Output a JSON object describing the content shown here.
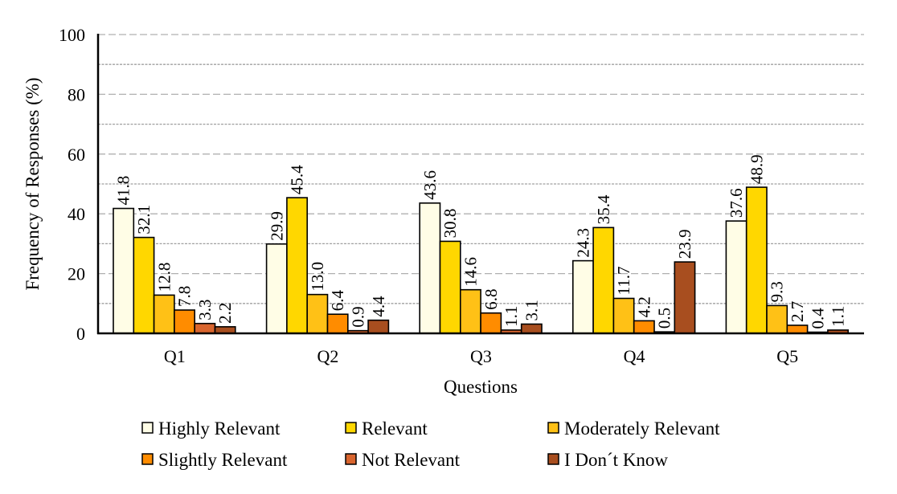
{
  "chart_data": {
    "type": "bar",
    "title": "",
    "xlabel": "Questions",
    "ylabel": "Frequency of Responses (%)",
    "ylim": [
      0,
      100
    ],
    "yticks": [
      0,
      20,
      40,
      60,
      80,
      100
    ],
    "grid": true,
    "legend_position": "bottom",
    "categories": [
      "Q1",
      "Q2",
      "Q3",
      "Q4",
      "Q5"
    ],
    "series": [
      {
        "name": "Highly Relevant",
        "color": "#FFFDE6",
        "values": [
          41.8,
          29.9,
          43.6,
          24.3,
          37.6
        ]
      },
      {
        "name": "Relevant",
        "color": "#FFD700",
        "values": [
          32.1,
          45.4,
          30.8,
          35.4,
          48.9
        ]
      },
      {
        "name": "Moderately Relevant",
        "color": "#FFC116",
        "values": [
          12.8,
          13.0,
          14.6,
          11.7,
          9.3
        ]
      },
      {
        "name": "Slightly Relevant",
        "color": "#FF8C00",
        "values": [
          7.8,
          6.4,
          6.8,
          4.2,
          2.7
        ]
      },
      {
        "name": "Not Relevant",
        "color": "#D9652E",
        "values": [
          3.3,
          0.9,
          1.1,
          0.5,
          0.4
        ]
      },
      {
        "name": "I Don´t Know",
        "color": "#A84E1F",
        "values": [
          2.2,
          4.4,
          3.1,
          23.9,
          1.1
        ]
      }
    ],
    "data_labels": [
      [
        "41.8",
        "29.9",
        "43.6",
        "24.3",
        "37.6"
      ],
      [
        "32.1",
        "45.4",
        "30.8",
        "35.4",
        "48.9"
      ],
      [
        "12.8",
        "13.0",
        "14.6",
        "11.7",
        "9.3"
      ],
      [
        "7.8",
        "6.4",
        "6.8",
        "4.2",
        "2.7"
      ],
      [
        "3.3",
        "0.9",
        "1.1",
        "0.5",
        "0.4"
      ],
      [
        "2.2",
        "4.4",
        "3.1",
        "23.9",
        "1.1"
      ]
    ]
  }
}
